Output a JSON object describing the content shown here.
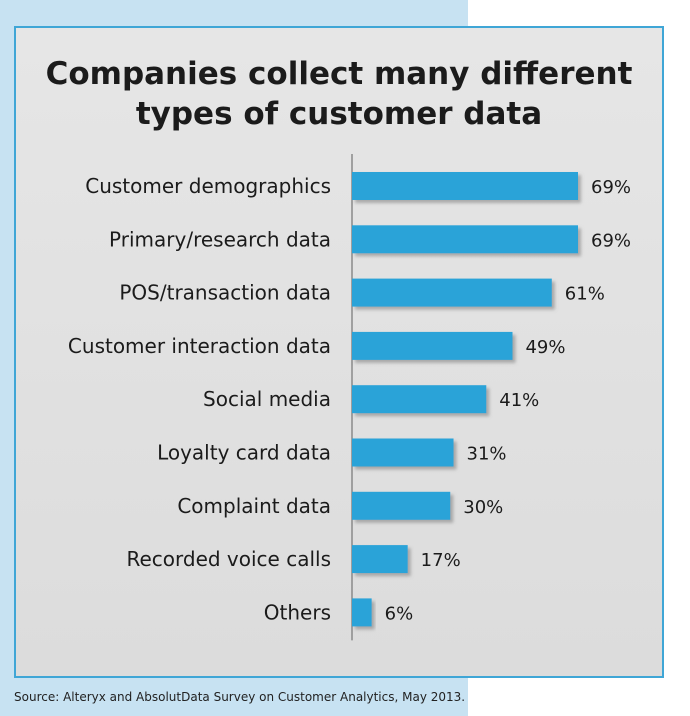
{
  "chart_data": {
    "type": "bar",
    "orientation": "horizontal",
    "title_lines": [
      "Companies collect many different",
      "types of customer data"
    ],
    "categories": [
      "Customer demographics",
      "Primary/research data",
      "POS/transaction data",
      "Customer interaction data",
      "Social media",
      "Loyalty card data",
      "Complaint data",
      "Recorded voice calls",
      "Others"
    ],
    "values": [
      69,
      69,
      61,
      49,
      41,
      31,
      30,
      17,
      6
    ],
    "value_labels": [
      "69%",
      "69%",
      "61%",
      "49%",
      "41%",
      "31%",
      "30%",
      "17%",
      "6%"
    ],
    "xlim": [
      0,
      70
    ],
    "grid": false,
    "bar_color": "#2aa3d8"
  },
  "source": "Source: Alteryx and AbsolutData Survey on Customer Analytics, May 2013.",
  "colors": {
    "background_band": "#c7e2f2",
    "panel": "#e2e2e2",
    "panel_border": "#3fa6d6",
    "bar": "#2aa3d8",
    "text": "#1b1b1b"
  }
}
